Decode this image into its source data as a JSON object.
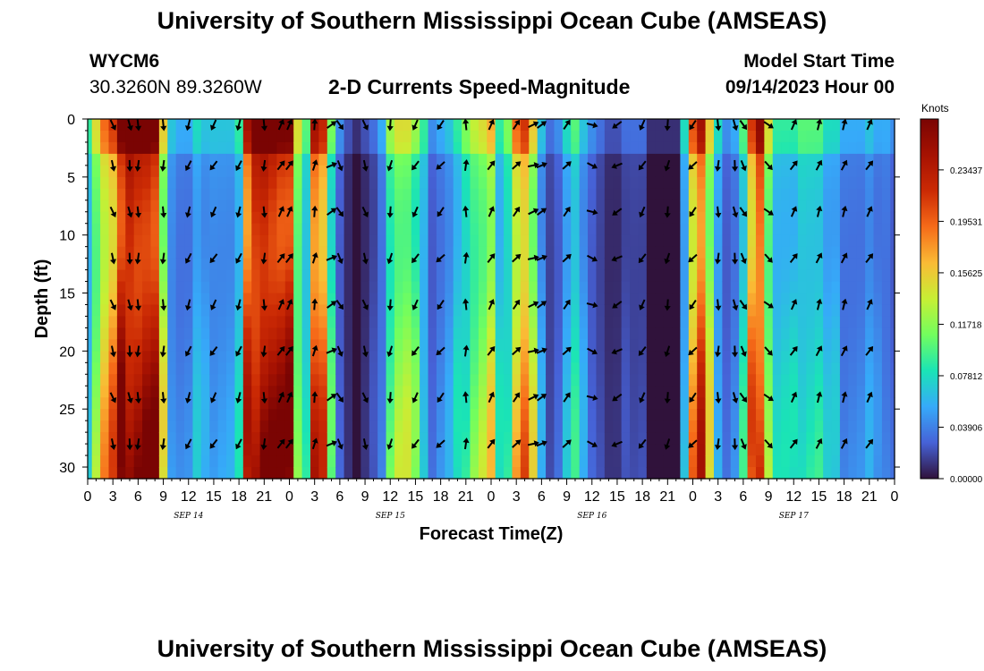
{
  "page_title": "University of Southern Mississippi Ocean Cube (AMSEAS)",
  "footer_title": "University of Southern Mississippi Ocean Cube (AMSEAS)",
  "station": {
    "id": "WYCM6",
    "coords": "30.3260N  89.3260W"
  },
  "model": {
    "start_label": "Model Start Time",
    "start_value": "09/14/2023 Hour 00"
  },
  "chart_data": {
    "type": "heatmap",
    "title": "2-D Currents Speed-Magnitude",
    "xlabel": "Forecast Time(Z)",
    "ylabel": "Depth (ft)",
    "x_ticks": [
      "0",
      "3",
      "6",
      "9",
      "12",
      "15",
      "18",
      "21",
      "0",
      "3",
      "6",
      "9",
      "12",
      "15",
      "18",
      "21",
      "0",
      "3",
      "6",
      "9",
      "12",
      "15",
      "18",
      "21",
      "0",
      "3",
      "6",
      "9",
      "12",
      "15",
      "18",
      "21",
      "0"
    ],
    "x_range_hours": [
      0,
      96
    ],
    "date_labels": [
      {
        "label": "SEP 14",
        "hour": 12
      },
      {
        "label": "SEP 15",
        "hour": 36
      },
      {
        "label": "SEP 16",
        "hour": 60
      },
      {
        "label": "SEP 17",
        "hour": 84
      }
    ],
    "y_ticks": [
      0,
      5,
      10,
      15,
      20,
      25,
      30
    ],
    "ylim": [
      0,
      31
    ],
    "colorbar": {
      "unit": "Knots",
      "min": 0.0,
      "max": 0.273,
      "tick_labels": [
        "0.23437",
        "0.19531",
        "0.15625",
        "0.11718",
        "0.07812",
        "0.03906",
        "0.00000"
      ],
      "tick_values": [
        0.23437,
        0.19531,
        0.15625,
        0.11718,
        0.07812,
        0.03906,
        0.0
      ]
    },
    "hours": [
      0,
      1,
      2,
      3,
      4,
      5,
      6,
      7,
      8,
      9,
      10,
      11,
      12,
      13,
      14,
      15,
      16,
      17,
      18,
      19,
      20,
      21,
      22,
      23,
      24,
      25,
      26,
      27,
      28,
      29,
      30,
      31,
      32,
      33,
      34,
      35,
      36,
      37,
      38,
      39,
      40,
      41,
      42,
      43,
      44,
      45,
      46,
      47,
      48,
      49,
      50,
      51,
      52,
      53,
      54,
      55,
      56,
      57,
      58,
      59,
      60,
      61,
      62,
      63,
      64,
      65,
      66,
      67,
      68,
      69,
      70,
      71,
      72,
      73,
      74,
      75,
      76,
      77,
      78,
      79,
      80,
      81,
      82,
      83,
      84,
      85,
      86,
      87,
      88,
      89,
      90,
      91,
      92,
      93,
      94,
      95,
      96
    ],
    "speed_profile_knots": [
      0.07,
      0.12,
      0.16,
      0.18,
      0.24,
      0.26,
      0.25,
      0.25,
      0.24,
      0.13,
      0.05,
      0.04,
      0.04,
      0.06,
      0.05,
      0.05,
      0.05,
      0.05,
      0.07,
      0.21,
      0.25,
      0.26,
      0.25,
      0.24,
      0.24,
      0.12,
      0.08,
      0.21,
      0.19,
      0.09,
      0.03,
      0.01,
      0.0,
      0.01,
      0.02,
      0.04,
      0.1,
      0.12,
      0.12,
      0.1,
      0.07,
      0.03,
      0.04,
      0.05,
      0.07,
      0.09,
      0.11,
      0.12,
      0.14,
      0.07,
      0.09,
      0.16,
      0.18,
      0.13,
      0.05,
      0.02,
      0.03,
      0.06,
      0.08,
      0.05,
      0.03,
      0.02,
      0.01,
      0.01,
      0.02,
      0.02,
      0.02,
      0.0,
      0.0,
      0.0,
      0.0,
      0.06,
      0.17,
      0.21,
      0.13,
      0.06,
      0.03,
      0.04,
      0.08,
      0.18,
      0.22,
      0.12,
      0.07,
      0.07,
      0.07,
      0.08,
      0.08,
      0.08,
      0.06,
      0.06,
      0.04,
      0.04,
      0.04,
      0.05,
      0.04,
      0.04,
      0.03
    ],
    "arrows": {
      "depths_ft": [
        0.5,
        4,
        8,
        12,
        16,
        20,
        24,
        28
      ],
      "hours": [
        3,
        5,
        6,
        9,
        12,
        15,
        18,
        21,
        23,
        24,
        27,
        29,
        30,
        33,
        36,
        39,
        42,
        45,
        48,
        51,
        53,
        54,
        57,
        60,
        63,
        66,
        69,
        72,
        75,
        77,
        78,
        81,
        84,
        87,
        90,
        93
      ],
      "direction_deg": [
        160,
        170,
        180,
        180,
        200,
        210,
        200,
        180,
        30,
        30,
        10,
        60,
        150,
        160,
        190,
        210,
        220,
        0,
        30,
        40,
        70,
        60,
        40,
        110,
        240,
        210,
        190,
        220,
        180,
        170,
        150,
        130,
        30,
        20,
        20,
        30
      ]
    }
  }
}
